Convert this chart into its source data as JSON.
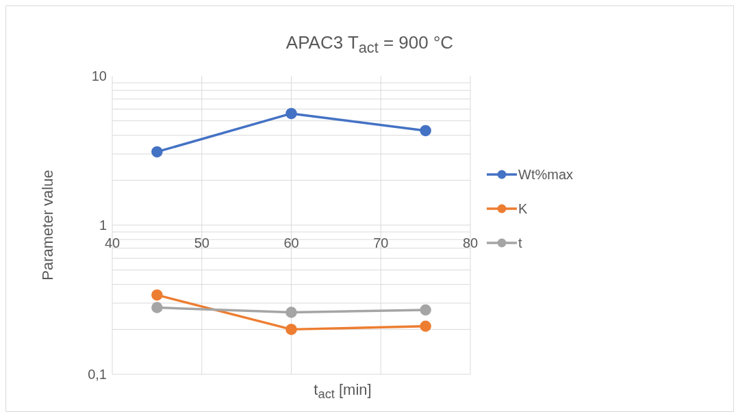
{
  "chart_data": {
    "type": "line",
    "title": "APAC3 T$_{act}$ = 900 °C",
    "xlabel": "t$_{act}$ [min]",
    "ylabel": "Parameter value",
    "x": [
      45,
      60,
      75
    ],
    "series": [
      {
        "name": "Wt%max",
        "color": "#4472c4",
        "values": [
          3.1,
          5.6,
          4.3
        ]
      },
      {
        "name": "K",
        "color": "#ed7d31",
        "values": [
          0.34,
          0.2,
          0.21
        ]
      },
      {
        "name": "t",
        "color": "#a5a5a5",
        "values": [
          0.28,
          0.26,
          0.27
        ]
      }
    ],
    "xlim": [
      40,
      80
    ],
    "xticks": [
      40,
      50,
      60,
      70,
      80
    ],
    "ylim": [
      0.1,
      10
    ],
    "yticks": [
      {
        "value": 0.1,
        "label": "0,1"
      },
      1,
      10
    ],
    "log": "y",
    "grid": true,
    "legend": "right",
    "marker": "circle",
    "line_style": "solid"
  }
}
